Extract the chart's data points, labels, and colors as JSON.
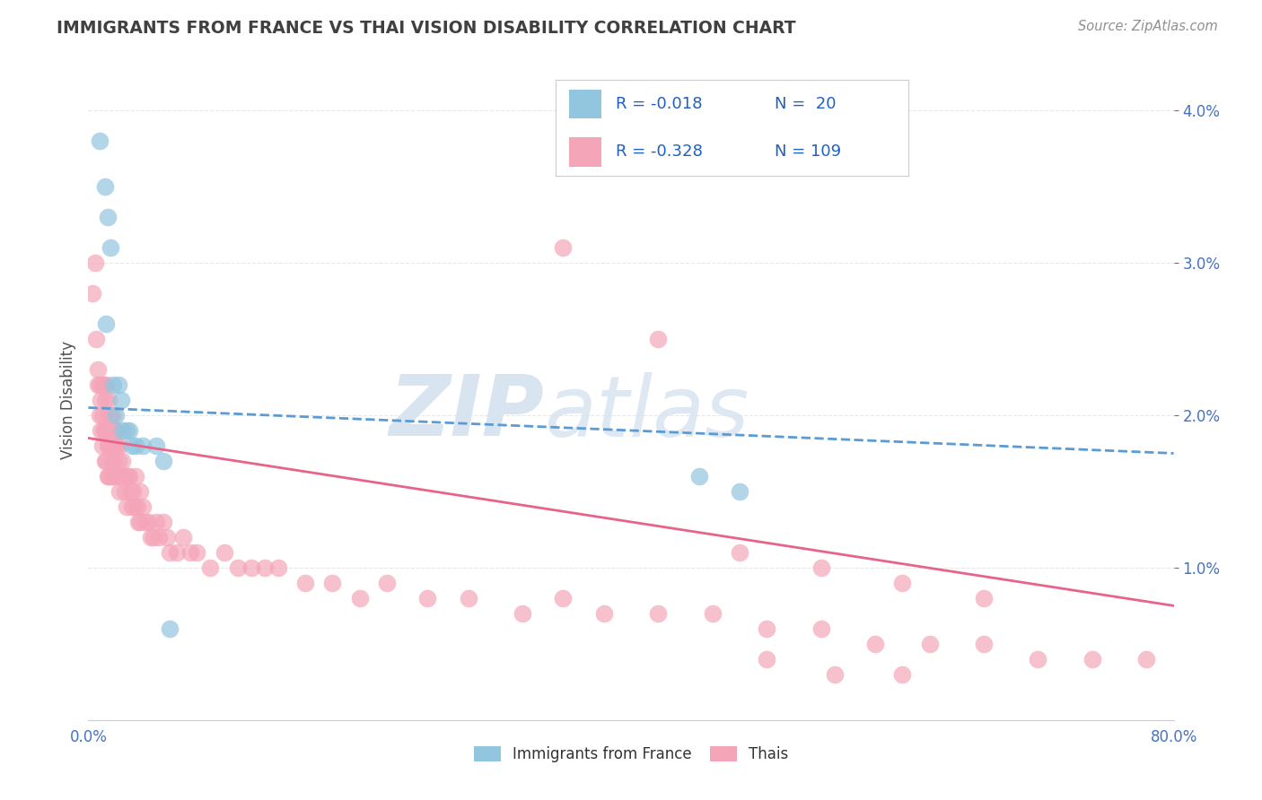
{
  "title": "IMMIGRANTS FROM FRANCE VS THAI VISION DISABILITY CORRELATION CHART",
  "source": "Source: ZipAtlas.com",
  "ylabel": "Vision Disability",
  "xlim": [
    0.0,
    0.8
  ],
  "ylim": [
    0.0,
    0.042
  ],
  "blue_color": "#92c5de",
  "pink_color": "#f4a6b8",
  "trendline_blue_color": "#5b9bd5",
  "trendline_pink_color": "#e8638a",
  "watermark_color": "#d8e4f0",
  "grid_color": "#e8e8e8",
  "bg_color": "#ffffff",
  "title_color": "#404040",
  "source_color": "#909090",
  "axis_label_color": "#4472c4",
  "legend_text_color": "#2060c0",
  "blue_scatter_x": [
    0.008,
    0.012,
    0.014,
    0.016,
    0.013,
    0.018,
    0.022,
    0.024,
    0.02,
    0.025,
    0.028,
    0.03,
    0.032,
    0.035,
    0.04,
    0.05,
    0.055,
    0.06,
    0.45,
    0.48
  ],
  "blue_scatter_y": [
    0.038,
    0.035,
    0.033,
    0.031,
    0.026,
    0.022,
    0.022,
    0.021,
    0.02,
    0.019,
    0.019,
    0.019,
    0.018,
    0.018,
    0.018,
    0.018,
    0.017,
    0.006,
    0.016,
    0.015
  ],
  "pink_scatter_x": [
    0.003,
    0.005,
    0.006,
    0.007,
    0.007,
    0.008,
    0.008,
    0.009,
    0.009,
    0.01,
    0.01,
    0.01,
    0.011,
    0.011,
    0.012,
    0.012,
    0.012,
    0.013,
    0.013,
    0.013,
    0.014,
    0.014,
    0.014,
    0.015,
    0.015,
    0.015,
    0.016,
    0.016,
    0.016,
    0.017,
    0.017,
    0.018,
    0.018,
    0.018,
    0.019,
    0.019,
    0.02,
    0.02,
    0.02,
    0.021,
    0.022,
    0.022,
    0.023,
    0.023,
    0.024,
    0.025,
    0.026,
    0.027,
    0.028,
    0.028,
    0.029,
    0.03,
    0.031,
    0.032,
    0.033,
    0.034,
    0.035,
    0.036,
    0.037,
    0.038,
    0.038,
    0.04,
    0.042,
    0.044,
    0.046,
    0.048,
    0.05,
    0.052,
    0.055,
    0.058,
    0.06,
    0.065,
    0.07,
    0.075,
    0.08,
    0.09,
    0.1,
    0.11,
    0.12,
    0.13,
    0.14,
    0.16,
    0.18,
    0.2,
    0.22,
    0.25,
    0.28,
    0.32,
    0.35,
    0.38,
    0.42,
    0.46,
    0.5,
    0.54,
    0.58,
    0.62,
    0.66,
    0.7,
    0.74,
    0.78,
    0.35,
    0.42,
    0.48,
    0.54,
    0.6,
    0.66,
    0.5,
    0.55,
    0.6
  ],
  "pink_scatter_y": [
    0.028,
    0.03,
    0.025,
    0.023,
    0.022,
    0.022,
    0.02,
    0.021,
    0.019,
    0.022,
    0.02,
    0.018,
    0.022,
    0.019,
    0.021,
    0.019,
    0.017,
    0.022,
    0.019,
    0.017,
    0.02,
    0.018,
    0.016,
    0.021,
    0.018,
    0.016,
    0.02,
    0.018,
    0.016,
    0.019,
    0.017,
    0.02,
    0.018,
    0.016,
    0.019,
    0.017,
    0.019,
    0.018,
    0.016,
    0.018,
    0.017,
    0.016,
    0.018,
    0.015,
    0.016,
    0.017,
    0.016,
    0.015,
    0.016,
    0.014,
    0.016,
    0.016,
    0.015,
    0.014,
    0.015,
    0.014,
    0.016,
    0.014,
    0.013,
    0.015,
    0.013,
    0.014,
    0.013,
    0.013,
    0.012,
    0.012,
    0.013,
    0.012,
    0.013,
    0.012,
    0.011,
    0.011,
    0.012,
    0.011,
    0.011,
    0.01,
    0.011,
    0.01,
    0.01,
    0.01,
    0.01,
    0.009,
    0.009,
    0.008,
    0.009,
    0.008,
    0.008,
    0.007,
    0.008,
    0.007,
    0.007,
    0.007,
    0.006,
    0.006,
    0.005,
    0.005,
    0.005,
    0.004,
    0.004,
    0.004,
    0.031,
    0.025,
    0.011,
    0.01,
    0.009,
    0.008,
    0.004,
    0.003,
    0.003
  ],
  "blue_trend_x0": 0.0,
  "blue_trend_y0": 0.0205,
  "blue_trend_x1": 0.8,
  "blue_trend_y1": 0.0175,
  "pink_trend_x0": 0.0,
  "pink_trend_y0": 0.0185,
  "pink_trend_x1": 0.8,
  "pink_trend_y1": 0.0075
}
